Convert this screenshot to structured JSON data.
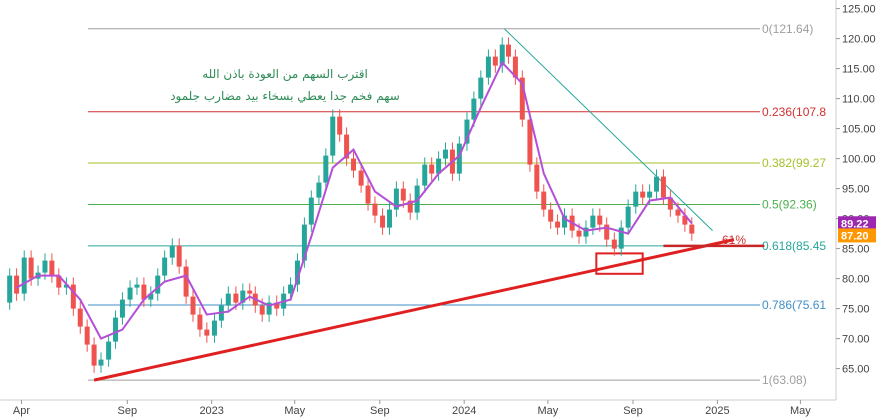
{
  "chart_data": {
    "type": "line",
    "title": "",
    "xlabel": "",
    "ylabel": "",
    "ylim": [
      60,
      125
    ],
    "y_ticks": [
      "65.00",
      "70.00",
      "75.00",
      "80.00",
      "85.00",
      "90.00",
      "95.00",
      "100.00",
      "105.00",
      "110.00",
      "115.00",
      "120.00",
      "125.00"
    ],
    "x_ticks": [
      {
        "label": "Apr",
        "date": "2022-04-01"
      },
      {
        "label": "Sep",
        "date": "2022-09-01"
      },
      {
        "label": "2023",
        "date": "2023-01-01"
      },
      {
        "label": "May",
        "date": "2023-05-01"
      },
      {
        "label": "Sep",
        "date": "2023-09-01"
      },
      {
        "label": "2024",
        "date": "2024-01-01"
      },
      {
        "label": "May",
        "date": "2024-05-01"
      },
      {
        "label": "Sep",
        "date": "2024-09-01"
      },
      {
        "label": "2025",
        "date": "2025-01-01"
      },
      {
        "label": "May",
        "date": "2025-05-01"
      }
    ],
    "xlim": [
      "2022-03-01",
      "2025-06-20"
    ],
    "grid": false,
    "fib_levels": [
      {
        "label": "0(121.64)",
        "value": 121.64,
        "color": "#9e9e9e"
      },
      {
        "label": "0.236(107.8",
        "value": 107.8,
        "color": "#d32f2f"
      },
      {
        "label": "0.382(99.27",
        "value": 99.27,
        "color": "#a5c22a"
      },
      {
        "label": "0.5(92.36)",
        "value": 92.36,
        "color": "#4caf50"
      },
      {
        "label": "0.618(85.45",
        "value": 85.45,
        "color": "#26a69a"
      },
      {
        "label": "0.786(75.61",
        "value": 75.61,
        "color": "#3f8fc7"
      },
      {
        "label": "1(63.08)",
        "value": 63.08,
        "color": "#9e9e9e"
      }
    ],
    "price_tags": [
      {
        "label": "89.22",
        "value": 89.22,
        "color": "#9c27b0"
      },
      {
        "label": "87.20",
        "value": 87.2,
        "color": "#ff9800"
      }
    ],
    "annotations": {
      "text_line1": "اقترب السهم من العودة باذن الله",
      "text_line2": "سهم فخم جدا يعطي بسخاء بيد مضارب جلمود",
      "percent_label": "61%"
    },
    "support_trendline": {
      "start": {
        "date": "2022-07-15",
        "value": 63.08
      },
      "end": {
        "date": "2025-01-25",
        "value": 86.5
      },
      "color": "#e02020"
    },
    "resistance_trendline": {
      "start": {
        "date": "2024-02-28",
        "value": 121.64
      },
      "end": {
        "date": "2024-12-25",
        "value": 88.0
      },
      "color": "#26a69a"
    },
    "horizontal_segment": {
      "start": "2024-10-15",
      "end": "2025-03-10",
      "value": 85.45,
      "color": "#c62828"
    },
    "highlight_box": {
      "start": "2024-07-10",
      "end": "2024-09-15",
      "y_from": 80.8,
      "y_to": 84.2,
      "color": "#e02020"
    },
    "series": [
      {
        "type": "candlestick",
        "up_color": "#26a69a",
        "down_color": "#ef5350",
        "points": [
          {
            "date": "2022-03-05",
            "value": 76.0
          },
          {
            "date": "2022-03-15",
            "value": 80.5
          },
          {
            "date": "2022-03-25",
            "value": 77.5
          },
          {
            "date": "2022-04-05",
            "value": 83.5
          },
          {
            "date": "2022-04-15",
            "value": 80.0
          },
          {
            "date": "2022-04-25",
            "value": 81.0
          },
          {
            "date": "2022-05-05",
            "value": 83.0
          },
          {
            "date": "2022-05-15",
            "value": 80.5
          },
          {
            "date": "2022-05-25",
            "value": 78.5
          },
          {
            "date": "2022-06-05",
            "value": 79.0
          },
          {
            "date": "2022-06-15",
            "value": 75.0
          },
          {
            "date": "2022-06-25",
            "value": 72.0
          },
          {
            "date": "2022-07-05",
            "value": 69.0
          },
          {
            "date": "2022-07-15",
            "value": 65.5
          },
          {
            "date": "2022-07-25",
            "value": 66.5
          },
          {
            "date": "2022-08-05",
            "value": 69.5
          },
          {
            "date": "2022-08-15",
            "value": 73.5
          },
          {
            "date": "2022-08-25",
            "value": 76.5
          },
          {
            "date": "2022-09-05",
            "value": 78.5
          },
          {
            "date": "2022-09-15",
            "value": 79.0
          },
          {
            "date": "2022-09-25",
            "value": 76.5
          },
          {
            "date": "2022-10-05",
            "value": 77.5
          },
          {
            "date": "2022-10-15",
            "value": 80.5
          },
          {
            "date": "2022-10-25",
            "value": 83.5
          },
          {
            "date": "2022-11-05",
            "value": 85.5
          },
          {
            "date": "2022-11-15",
            "value": 82.0
          },
          {
            "date": "2022-11-25",
            "value": 77.0
          },
          {
            "date": "2022-12-05",
            "value": 74.0
          },
          {
            "date": "2022-12-15",
            "value": 71.5
          },
          {
            "date": "2022-12-25",
            "value": 70.5
          },
          {
            "date": "2023-01-05",
            "value": 73.0
          },
          {
            "date": "2023-01-15",
            "value": 75.5
          },
          {
            "date": "2023-01-25",
            "value": 77.5
          },
          {
            "date": "2023-02-05",
            "value": 76.0
          },
          {
            "date": "2023-02-15",
            "value": 78.0
          },
          {
            "date": "2023-02-25",
            "value": 77.5
          },
          {
            "date": "2023-03-05",
            "value": 75.5
          },
          {
            "date": "2023-03-15",
            "value": 74.0
          },
          {
            "date": "2023-03-25",
            "value": 76.0
          },
          {
            "date": "2023-04-05",
            "value": 75.0
          },
          {
            "date": "2023-04-15",
            "value": 77.5
          },
          {
            "date": "2023-04-25",
            "value": 79.0
          },
          {
            "date": "2023-05-05",
            "value": 83.0
          },
          {
            "date": "2023-05-15",
            "value": 89.0
          },
          {
            "date": "2023-05-25",
            "value": 93.5
          },
          {
            "date": "2023-06-05",
            "value": 96.0
          },
          {
            "date": "2023-06-15",
            "value": 100.5
          },
          {
            "date": "2023-06-25",
            "value": 107.0
          },
          {
            "date": "2023-07-05",
            "value": 104.0
          },
          {
            "date": "2023-07-15",
            "value": 100.0
          },
          {
            "date": "2023-07-25",
            "value": 98.0
          },
          {
            "date": "2023-08-05",
            "value": 95.5
          },
          {
            "date": "2023-08-15",
            "value": 92.5
          },
          {
            "date": "2023-08-25",
            "value": 90.5
          },
          {
            "date": "2023-09-05",
            "value": 88.5
          },
          {
            "date": "2023-09-15",
            "value": 91.5
          },
          {
            "date": "2023-09-25",
            "value": 95.0
          },
          {
            "date": "2023-10-05",
            "value": 93.0
          },
          {
            "date": "2023-10-15",
            "value": 91.0
          },
          {
            "date": "2023-10-25",
            "value": 95.5
          },
          {
            "date": "2023-11-05",
            "value": 99.0
          },
          {
            "date": "2023-11-15",
            "value": 97.5
          },
          {
            "date": "2023-11-25",
            "value": 100.0
          },
          {
            "date": "2023-12-05",
            "value": 101.5
          },
          {
            "date": "2023-12-15",
            "value": 97.5
          },
          {
            "date": "2023-12-25",
            "value": 102.5
          },
          {
            "date": "2024-01-05",
            "value": 106.5
          },
          {
            "date": "2024-01-15",
            "value": 110.0
          },
          {
            "date": "2024-01-25",
            "value": 113.5
          },
          {
            "date": "2024-02-05",
            "value": 117.0
          },
          {
            "date": "2024-02-15",
            "value": 115.5
          },
          {
            "date": "2024-02-25",
            "value": 119.0
          },
          {
            "date": "2024-03-05",
            "value": 117.0
          },
          {
            "date": "2024-03-15",
            "value": 113.5
          },
          {
            "date": "2024-03-25",
            "value": 106.5
          },
          {
            "date": "2024-04-05",
            "value": 99.0
          },
          {
            "date": "2024-04-15",
            "value": 94.5
          },
          {
            "date": "2024-04-25",
            "value": 91.5
          },
          {
            "date": "2024-05-05",
            "value": 89.5
          },
          {
            "date": "2024-05-15",
            "value": 88.5
          },
          {
            "date": "2024-05-25",
            "value": 90.5
          },
          {
            "date": "2024-06-05",
            "value": 88.0
          },
          {
            "date": "2024-06-15",
            "value": 87.0
          },
          {
            "date": "2024-06-25",
            "value": 88.5
          },
          {
            "date": "2024-07-05",
            "value": 90.5
          },
          {
            "date": "2024-07-15",
            "value": 89.0
          },
          {
            "date": "2024-07-25",
            "value": 86.5
          },
          {
            "date": "2024-08-05",
            "value": 85.0
          },
          {
            "date": "2024-08-15",
            "value": 88.5
          },
          {
            "date": "2024-08-25",
            "value": 92.0
          },
          {
            "date": "2024-09-05",
            "value": 94.5
          },
          {
            "date": "2024-09-15",
            "value": 93.5
          },
          {
            "date": "2024-09-25",
            "value": 94.5
          },
          {
            "date": "2024-10-05",
            "value": 97.0
          },
          {
            "date": "2024-10-15",
            "value": 93.5
          },
          {
            "date": "2024-10-25",
            "value": 91.5
          },
          {
            "date": "2024-11-05",
            "value": 90.5
          },
          {
            "date": "2024-11-15",
            "value": 89.0
          },
          {
            "date": "2024-11-25",
            "value": 87.5
          }
        ]
      },
      {
        "type": "line",
        "color": "#b44fd6",
        "points": [
          {
            "date": "2022-03-25",
            "value": 78.5
          },
          {
            "date": "2022-04-25",
            "value": 80.5
          },
          {
            "date": "2022-05-25",
            "value": 80.5
          },
          {
            "date": "2022-06-25",
            "value": 76.5
          },
          {
            "date": "2022-07-25",
            "value": 70.0
          },
          {
            "date": "2022-08-25",
            "value": 71.5
          },
          {
            "date": "2022-09-25",
            "value": 76.5
          },
          {
            "date": "2022-10-25",
            "value": 79.5
          },
          {
            "date": "2022-11-25",
            "value": 80.5
          },
          {
            "date": "2022-12-25",
            "value": 74.0
          },
          {
            "date": "2023-01-25",
            "value": 74.5
          },
          {
            "date": "2023-02-25",
            "value": 77.0
          },
          {
            "date": "2023-03-25",
            "value": 75.5
          },
          {
            "date": "2023-04-25",
            "value": 76.5
          },
          {
            "date": "2023-05-25",
            "value": 87.0
          },
          {
            "date": "2023-06-25",
            "value": 98.5
          },
          {
            "date": "2023-07-25",
            "value": 101.5
          },
          {
            "date": "2023-08-25",
            "value": 94.5
          },
          {
            "date": "2023-09-25",
            "value": 92.0
          },
          {
            "date": "2023-10-25",
            "value": 93.0
          },
          {
            "date": "2023-11-25",
            "value": 97.5
          },
          {
            "date": "2023-12-25",
            "value": 100.5
          },
          {
            "date": "2024-01-25",
            "value": 108.5
          },
          {
            "date": "2024-02-25",
            "value": 116.0
          },
          {
            "date": "2024-03-25",
            "value": 112.5
          },
          {
            "date": "2024-04-25",
            "value": 97.5
          },
          {
            "date": "2024-05-25",
            "value": 90.0
          },
          {
            "date": "2024-06-25",
            "value": 88.0
          },
          {
            "date": "2024-07-25",
            "value": 88.5
          },
          {
            "date": "2024-08-25",
            "value": 87.5
          },
          {
            "date": "2024-09-25",
            "value": 93.0
          },
          {
            "date": "2024-10-25",
            "value": 93.5
          },
          {
            "date": "2024-11-25",
            "value": 89.2
          }
        ]
      }
    ]
  }
}
